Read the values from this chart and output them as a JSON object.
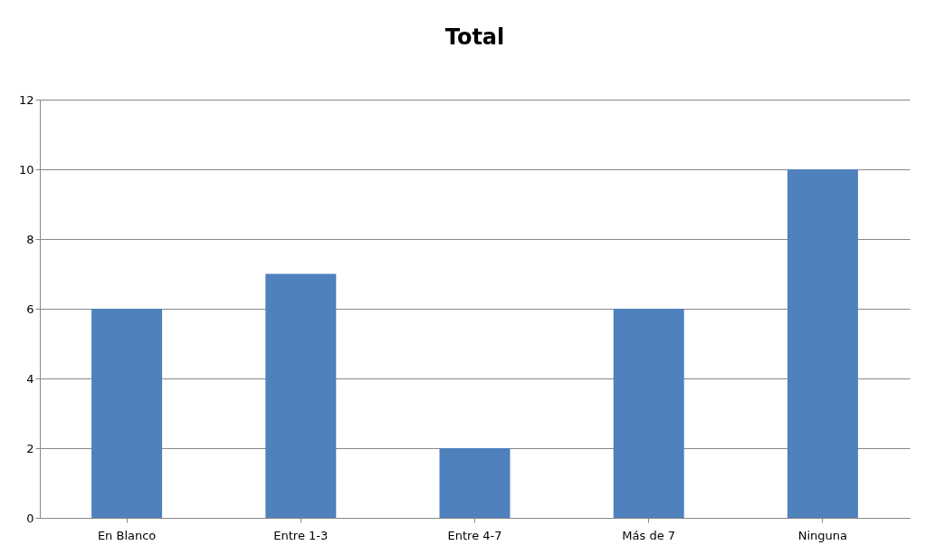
{
  "chart_data": {
    "type": "bar",
    "title": "Total",
    "categories": [
      "En Blanco",
      "Entre 1-3",
      "Entre 4-7",
      "Más de 7",
      "Ninguna"
    ],
    "values": [
      6,
      7,
      2,
      6,
      10
    ],
    "color": "#4f81bd",
    "ylim": [
      0,
      12
    ],
    "yticks": [
      0,
      2,
      4,
      6,
      8,
      10,
      12
    ],
    "grid": "y"
  }
}
